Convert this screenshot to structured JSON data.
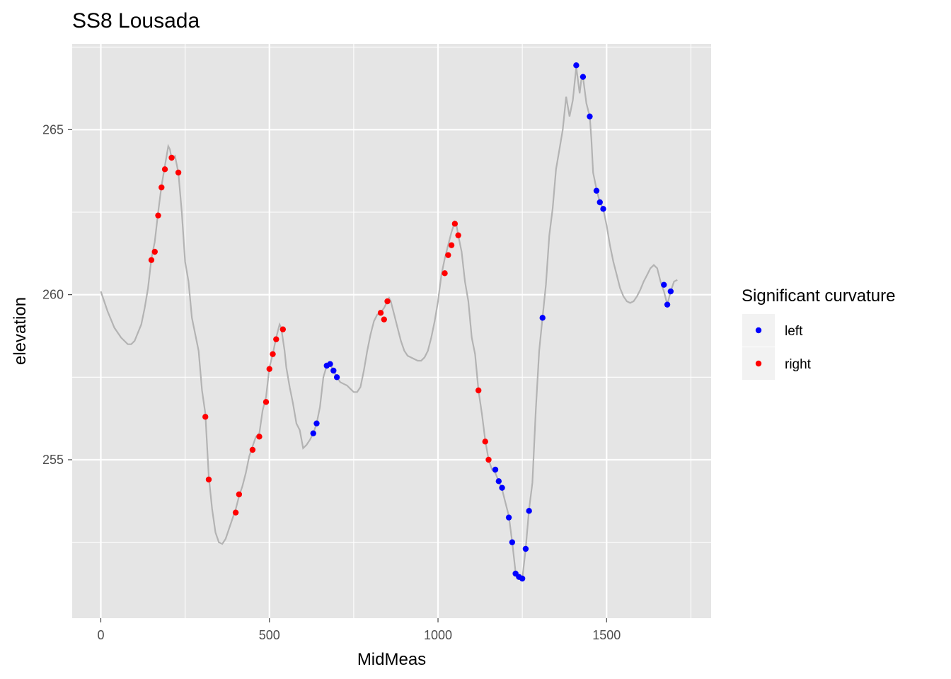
{
  "chart_data": {
    "type": "scatter",
    "title": "SS8 Lousada",
    "xlabel": "MidMeas",
    "ylabel": "elevation",
    "xlim": [
      -85,
      1810
    ],
    "ylim": [
      250.2,
      267.6
    ],
    "x_ticks": [
      0,
      500,
      1000,
      1500
    ],
    "x_tick_labels": [
      "0",
      "500",
      "1000",
      "1500"
    ],
    "y_ticks": [
      255,
      260,
      265
    ],
    "y_tick_labels": [
      "255",
      "260",
      "265"
    ],
    "grid": true,
    "legend": {
      "title": "Significant curvature",
      "placement": "right",
      "entries": [
        {
          "label": "left",
          "color": "#0000ff"
        },
        {
          "label": "right",
          "color": "#ff0000"
        }
      ]
    },
    "colors": {
      "panel_background": "#e5e5e5",
      "grid_line": "#ffffff",
      "profile_line": "#b3b3b3",
      "left": "#0000ff",
      "right": "#ff0000"
    },
    "profile": [
      [
        0,
        260.1
      ],
      [
        20,
        259.5
      ],
      [
        40,
        259.0
      ],
      [
        60,
        258.7
      ],
      [
        80,
        258.5
      ],
      [
        90,
        258.5
      ],
      [
        100,
        258.6
      ],
      [
        120,
        259.1
      ],
      [
        130,
        259.6
      ],
      [
        140,
        260.2
      ],
      [
        150,
        261.1
      ],
      [
        160,
        261.6
      ],
      [
        170,
        262.5
      ],
      [
        180,
        263.3
      ],
      [
        190,
        263.9
      ],
      [
        200,
        264.5
      ],
      [
        205,
        264.4
      ],
      [
        210,
        264.1
      ],
      [
        220,
        264.2
      ],
      [
        230,
        263.7
      ],
      [
        240,
        262.5
      ],
      [
        250,
        261.0
      ],
      [
        260,
        260.4
      ],
      [
        270,
        259.3
      ],
      [
        290,
        258.3
      ],
      [
        300,
        257.1
      ],
      [
        310,
        256.4
      ],
      [
        320,
        254.5
      ],
      [
        330,
        253.5
      ],
      [
        340,
        252.8
      ],
      [
        350,
        252.5
      ],
      [
        360,
        252.45
      ],
      [
        370,
        252.6
      ],
      [
        390,
        253.2
      ],
      [
        400,
        253.5
      ],
      [
        410,
        253.9
      ],
      [
        420,
        254.2
      ],
      [
        430,
        254.6
      ],
      [
        440,
        255.1
      ],
      [
        450,
        255.4
      ],
      [
        460,
        255.7
      ],
      [
        470,
        255.8
      ],
      [
        480,
        256.5
      ],
      [
        490,
        256.9
      ],
      [
        500,
        257.8
      ],
      [
        510,
        258.2
      ],
      [
        520,
        258.7
      ],
      [
        530,
        259.1
      ],
      [
        535,
        259.0
      ],
      [
        545,
        258.3
      ],
      [
        550,
        257.8
      ],
      [
        560,
        257.2
      ],
      [
        570,
        256.7
      ],
      [
        580,
        256.1
      ],
      [
        590,
        255.9
      ],
      [
        600,
        255.35
      ],
      [
        610,
        255.45
      ],
      [
        620,
        255.6
      ],
      [
        630,
        255.8
      ],
      [
        640,
        256.1
      ],
      [
        650,
        256.6
      ],
      [
        660,
        257.5
      ],
      [
        670,
        257.85
      ],
      [
        680,
        257.9
      ],
      [
        690,
        257.7
      ],
      [
        700,
        257.5
      ],
      [
        710,
        257.35
      ],
      [
        720,
        257.3
      ],
      [
        730,
        257.25
      ],
      [
        740,
        257.15
      ],
      [
        750,
        257.05
      ],
      [
        760,
        257.05
      ],
      [
        770,
        257.2
      ],
      [
        780,
        257.7
      ],
      [
        790,
        258.3
      ],
      [
        800,
        258.8
      ],
      [
        810,
        259.2
      ],
      [
        820,
        259.4
      ],
      [
        830,
        259.45
      ],
      [
        840,
        259.6
      ],
      [
        850,
        259.8
      ],
      [
        855,
        259.9
      ],
      [
        860,
        259.8
      ],
      [
        870,
        259.4
      ],
      [
        880,
        259.0
      ],
      [
        890,
        258.6
      ],
      [
        900,
        258.3
      ],
      [
        910,
        258.15
      ],
      [
        930,
        258.05
      ],
      [
        940,
        258.0
      ],
      [
        950,
        258.0
      ],
      [
        960,
        258.1
      ],
      [
        970,
        258.3
      ],
      [
        980,
        258.7
      ],
      [
        990,
        259.2
      ],
      [
        1000,
        259.8
      ],
      [
        1010,
        260.6
      ],
      [
        1020,
        261.1
      ],
      [
        1030,
        261.5
      ],
      [
        1040,
        261.9
      ],
      [
        1050,
        262.2
      ],
      [
        1055,
        262.1
      ],
      [
        1060,
        261.8
      ],
      [
        1070,
        261.3
      ],
      [
        1080,
        260.4
      ],
      [
        1090,
        259.8
      ],
      [
        1100,
        258.7
      ],
      [
        1110,
        258.2
      ],
      [
        1120,
        257.1
      ],
      [
        1130,
        256.4
      ],
      [
        1140,
        255.6
      ],
      [
        1150,
        255.0
      ],
      [
        1160,
        254.7
      ],
      [
        1170,
        254.6
      ],
      [
        1180,
        254.35
      ],
      [
        1190,
        254.1
      ],
      [
        1200,
        253.7
      ],
      [
        1210,
        253.3
      ],
      [
        1220,
        252.5
      ],
      [
        1230,
        251.6
      ],
      [
        1240,
        251.45
      ],
      [
        1250,
        251.4
      ],
      [
        1260,
        252.3
      ],
      [
        1270,
        253.5
      ],
      [
        1280,
        254.3
      ],
      [
        1290,
        256.5
      ],
      [
        1300,
        258.3
      ],
      [
        1310,
        259.3
      ],
      [
        1320,
        260.3
      ],
      [
        1330,
        261.8
      ],
      [
        1340,
        262.6
      ],
      [
        1350,
        263.8
      ],
      [
        1360,
        264.4
      ],
      [
        1370,
        265.0
      ],
      [
        1380,
        266.0
      ],
      [
        1390,
        265.4
      ],
      [
        1400,
        265.9
      ],
      [
        1410,
        266.9
      ],
      [
        1420,
        266.1
      ],
      [
        1425,
        266.5
      ],
      [
        1430,
        266.6
      ],
      [
        1440,
        265.8
      ],
      [
        1450,
        265.4
      ],
      [
        1455,
        264.7
      ],
      [
        1460,
        263.7
      ],
      [
        1470,
        263.2
      ],
      [
        1480,
        262.8
      ],
      [
        1490,
        262.6
      ],
      [
        1500,
        262.1
      ],
      [
        1510,
        261.5
      ],
      [
        1520,
        261.0
      ],
      [
        1530,
        260.6
      ],
      [
        1540,
        260.2
      ],
      [
        1550,
        259.95
      ],
      [
        1560,
        259.8
      ],
      [
        1570,
        259.75
      ],
      [
        1580,
        259.8
      ],
      [
        1590,
        259.95
      ],
      [
        1600,
        260.15
      ],
      [
        1610,
        260.4
      ],
      [
        1620,
        260.6
      ],
      [
        1630,
        260.8
      ],
      [
        1640,
        260.9
      ],
      [
        1650,
        260.8
      ],
      [
        1660,
        260.4
      ],
      [
        1670,
        260.1
      ],
      [
        1680,
        259.7
      ],
      [
        1690,
        260.1
      ],
      [
        1700,
        260.4
      ],
      [
        1710,
        260.45
      ]
    ],
    "series": [
      {
        "name": "left",
        "color": "#0000ff",
        "x": [
          630,
          640,
          670,
          680,
          690,
          700,
          1170,
          1180,
          1190,
          1210,
          1220,
          1230,
          1240,
          1250,
          1260,
          1270,
          1310,
          1410,
          1430,
          1450,
          1470,
          1480,
          1490,
          1670,
          1680,
          1690
        ],
        "y": [
          255.8,
          256.1,
          257.85,
          257.9,
          257.7,
          257.5,
          254.7,
          254.35,
          254.15,
          253.25,
          252.5,
          251.55,
          251.45,
          251.4,
          252.3,
          253.45,
          259.3,
          266.95,
          266.6,
          265.4,
          263.15,
          262.8,
          262.6,
          260.3,
          259.7,
          260.1
        ]
      },
      {
        "name": "right",
        "color": "#ff0000",
        "x": [
          150,
          160,
          170,
          180,
          190,
          210,
          230,
          310,
          320,
          400,
          410,
          450,
          470,
          490,
          500,
          510,
          520,
          540,
          830,
          840,
          850,
          1020,
          1030,
          1040,
          1050,
          1060,
          1120,
          1140,
          1150
        ],
        "y": [
          261.05,
          261.3,
          262.4,
          263.25,
          263.8,
          264.15,
          263.7,
          256.3,
          254.4,
          253.4,
          253.95,
          255.3,
          255.7,
          256.75,
          257.75,
          258.2,
          258.65,
          258.95,
          259.45,
          259.25,
          259.8,
          260.65,
          261.2,
          261.5,
          262.15,
          261.8,
          257.1,
          255.55,
          255.0
        ]
      }
    ]
  }
}
